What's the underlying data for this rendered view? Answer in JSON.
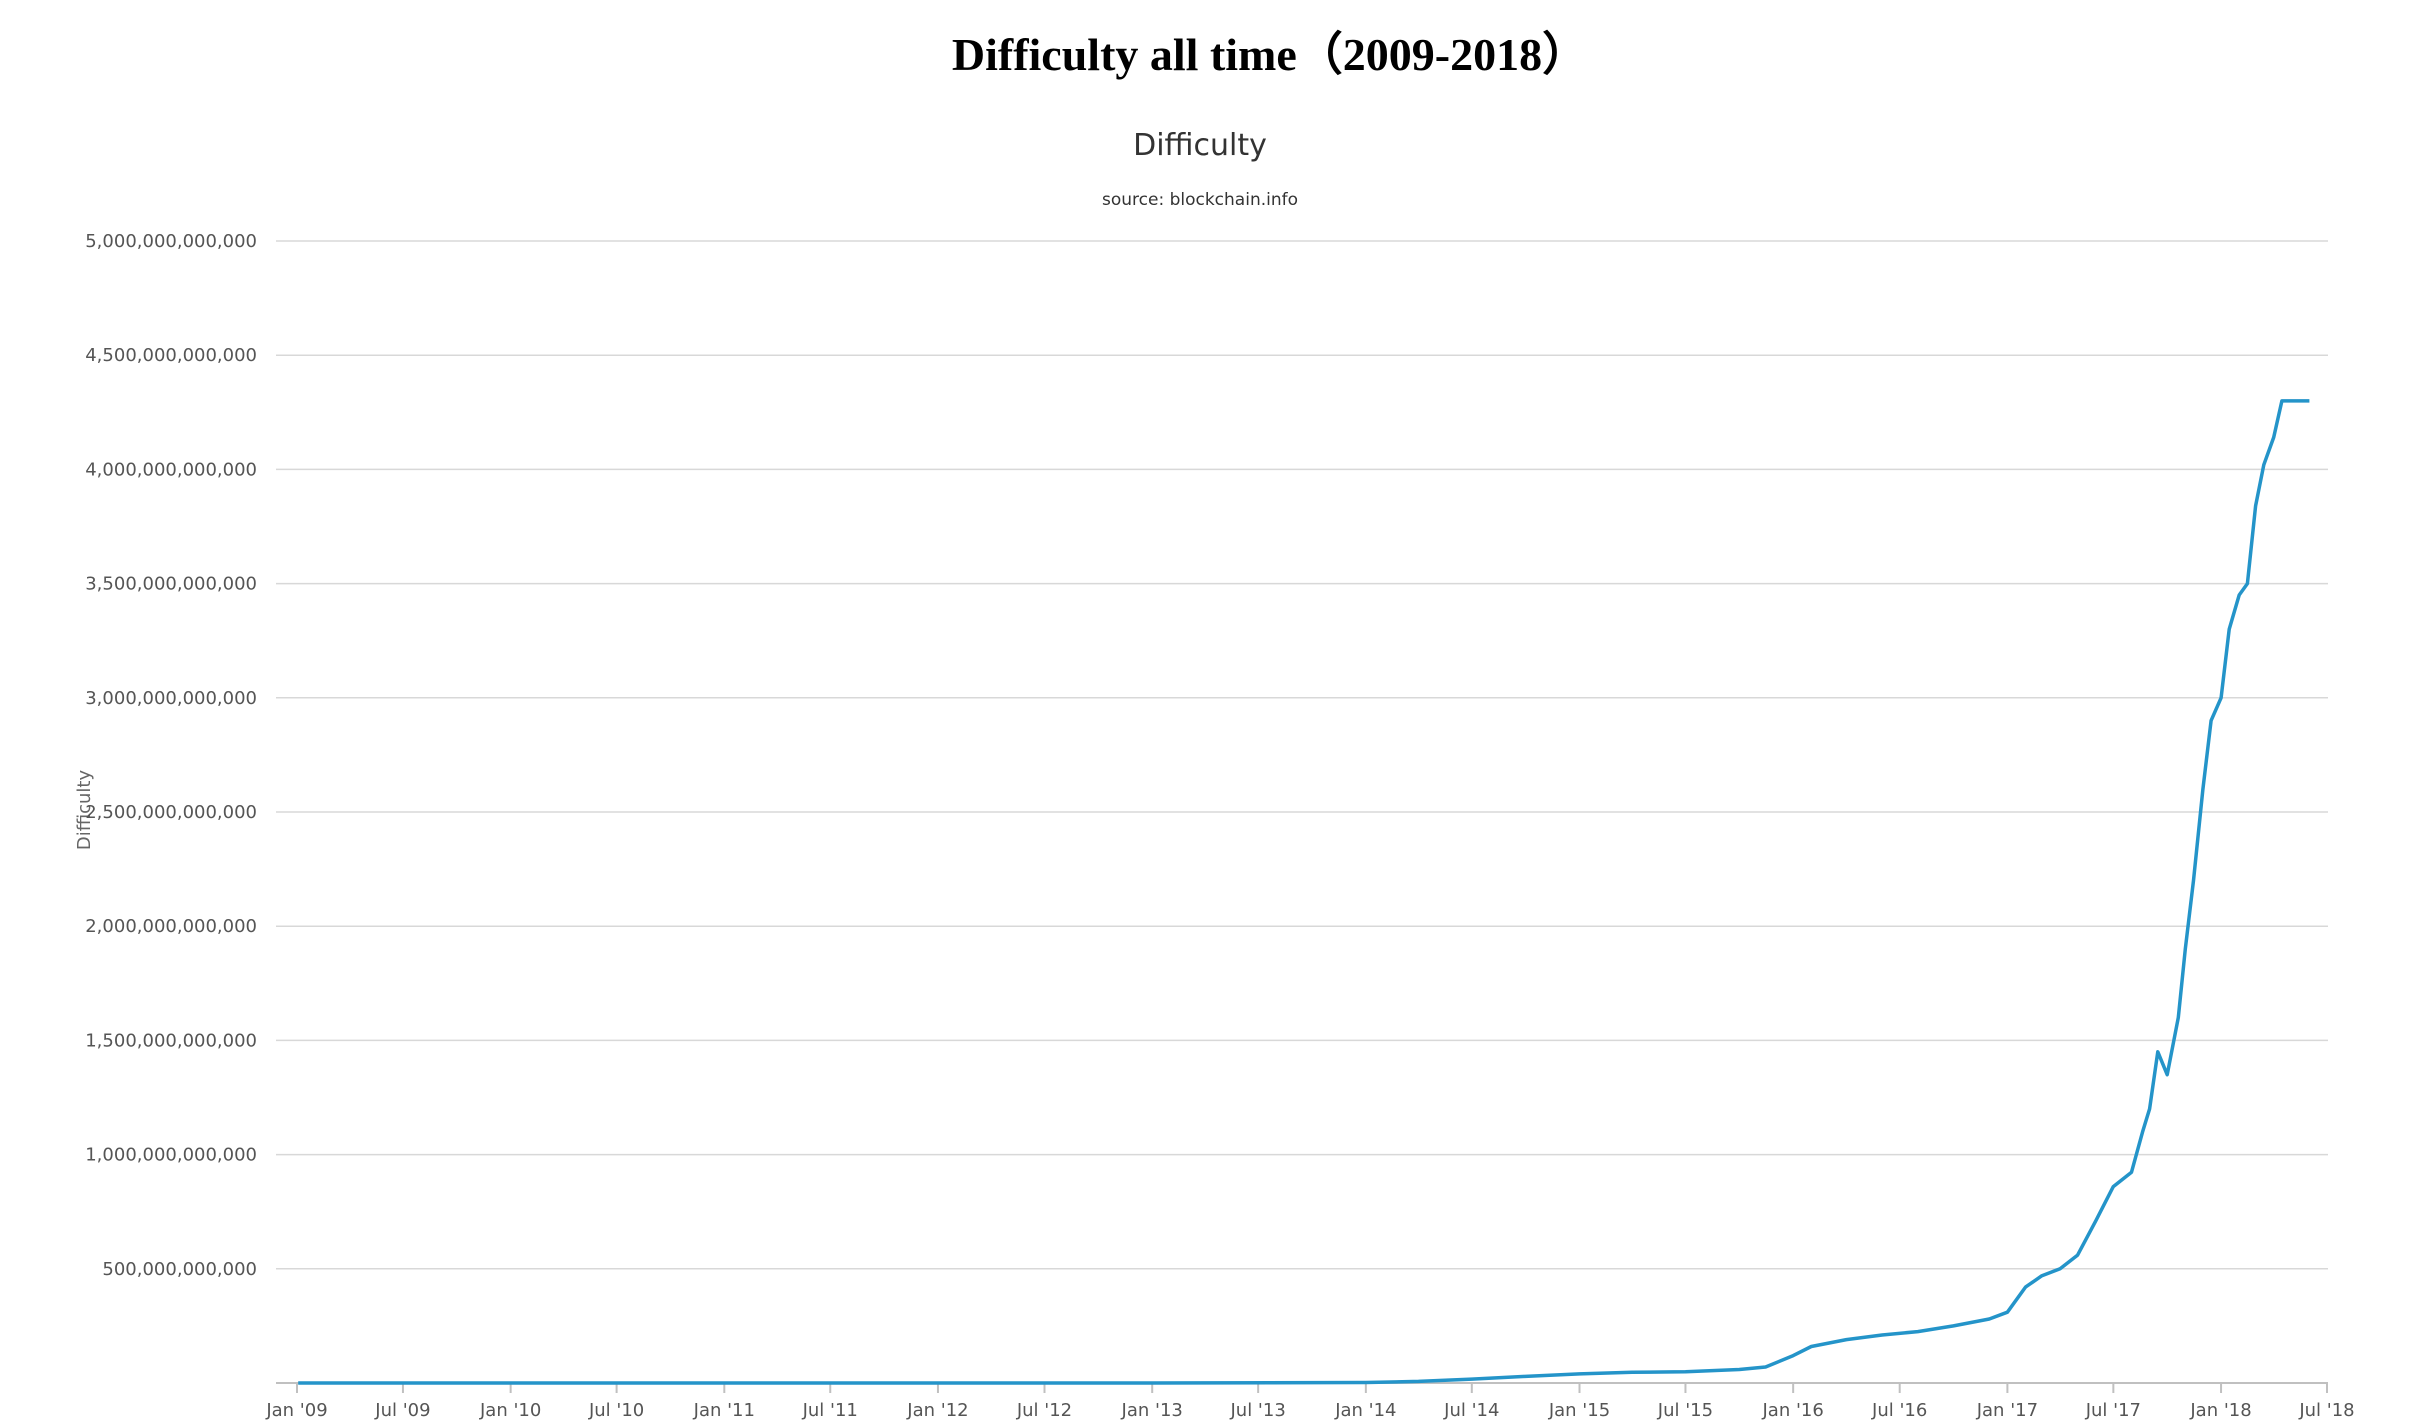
{
  "chart_data": {
    "type": "line",
    "title": "Difficulty all time（2009-2018）",
    "subtitle": "Difficulty",
    "source_note": "source: blockchain.info",
    "xlabel": "",
    "ylabel": "Difficulty",
    "xlim": [
      "2009-01-01",
      "2018-07-01"
    ],
    "ylim": [
      0,
      5000000000000
    ],
    "yticks": [
      500000000000,
      1000000000000,
      1500000000000,
      2000000000000,
      2500000000000,
      3000000000000,
      3500000000000,
      4000000000000,
      4500000000000,
      5000000000000
    ],
    "ytick_labels": [
      "500,000,000,000",
      "1,000,000,000,000",
      "1,500,000,000,000",
      "2,000,000,000,000",
      "2,500,000,000,000",
      "3,000,000,000,000",
      "3,500,000,000,000",
      "4,000,000,000,000",
      "4,500,000,000,000",
      "5,000,000,000,000"
    ],
    "xticks": [
      "2009-01-01",
      "2009-07-01",
      "2010-01-01",
      "2010-07-01",
      "2011-01-01",
      "2011-07-01",
      "2012-01-01",
      "2012-07-01",
      "2013-01-01",
      "2013-07-01",
      "2014-01-01",
      "2014-07-01",
      "2015-01-01",
      "2015-07-01",
      "2016-01-01",
      "2016-07-01",
      "2017-01-01",
      "2017-07-01",
      "2018-01-01",
      "2018-07-01"
    ],
    "xtick_labels": [
      "Jan '09",
      "Jul '09",
      "Jan '10",
      "Jul '10",
      "Jan '11",
      "Jul '11",
      "Jan '12",
      "Jul '12",
      "Jan '13",
      "Jul '13",
      "Jan '14",
      "Jul '14",
      "Jan '15",
      "Jul '15",
      "Jan '16",
      "Jul '16",
      "Jan '17",
      "Jul '17",
      "Jan '18",
      "Jul '18"
    ],
    "grid": true,
    "legend": "none",
    "color": "#2494c9",
    "series": [
      {
        "x": [
          "2009-01-03",
          "2013-01-01",
          "2014-01-01",
          "2014-04-01",
          "2014-07-01",
          "2014-10-01",
          "2015-01-01",
          "2015-04-01",
          "2015-07-01",
          "2015-10-01",
          "2015-11-15",
          "2016-01-01",
          "2016-02-01",
          "2016-04-01",
          "2016-06-01",
          "2016-08-01",
          "2016-10-01",
          "2016-12-01",
          "2017-01-01",
          "2017-02-01",
          "2017-03-01",
          "2017-04-01",
          "2017-05-01",
          "2017-06-01",
          "2017-07-01",
          "2017-08-01",
          "2017-08-20",
          "2017-09-01",
          "2017-09-15",
          "2017-10-01",
          "2017-10-20",
          "2017-11-01",
          "2017-11-15",
          "2017-12-01",
          "2017-12-15",
          "2018-01-01",
          "2018-01-15",
          "2018-02-01",
          "2018-02-15",
          "2018-03-01",
          "2018-03-15",
          "2018-04-01",
          "2018-04-15",
          "2018-05-01",
          "2018-05-15",
          "2018-06-01"
        ],
        "y": [
          1,
          200000000,
          2000000000,
          7000000000,
          17000000000,
          29000000000,
          40000000000,
          47000000000,
          49000000000,
          59000000000,
          70000000000,
          120000000000,
          160000000000,
          190000000000,
          210000000000,
          225000000000,
          250000000000,
          280000000000,
          310000000000,
          420000000000,
          470000000000,
          500000000000,
          560000000000,
          710000000000,
          860000000000,
          923000000000,
          1100000000000,
          1200000000000,
          1450000000000,
          1350000000000,
          1600000000000,
          1900000000000,
          2200000000000,
          2600000000000,
          2900000000000,
          3000000000000,
          3300000000000,
          3450000000000,
          3500000000000,
          3840000000000,
          4020000000000,
          4140000000000,
          4300000000000,
          4300000000000,
          4300000000000,
          4300000000000
        ]
      }
    ]
  }
}
